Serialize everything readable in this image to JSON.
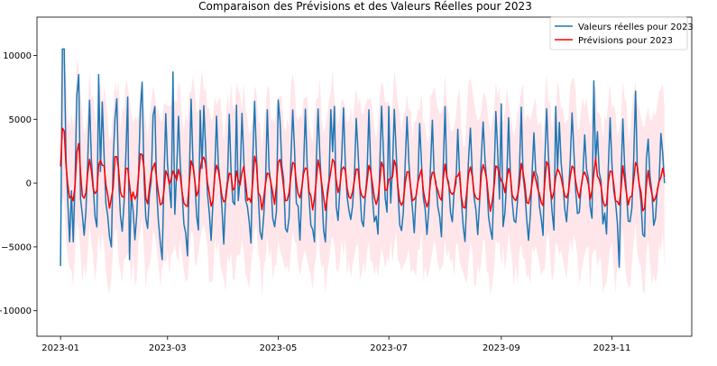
{
  "chart_data": {
    "type": "line",
    "title": "Comparaison des Prévisions et des Valeurs Réelles pour 2023",
    "xlabel": "",
    "ylabel": "",
    "x_start": "2023-01-01",
    "x_end": "2023-11-30",
    "xlim": [
      "2022-12-19",
      "2023-12-15"
    ],
    "ylim": [
      -12000,
      13000
    ],
    "x_ticks": [
      "2023-01",
      "2023-03",
      "2023-05",
      "2023-07",
      "2023-09",
      "2023-11"
    ],
    "x_tick_dates": [
      "2023-01-01",
      "2023-03-01",
      "2023-05-01",
      "2023-07-01",
      "2023-09-01",
      "2023-11-01"
    ],
    "y_ticks": [
      -10000,
      -5000,
      0,
      5000,
      10000
    ],
    "y_tick_labels": [
      "−10000",
      "−5000",
      "0",
      "5000",
      "10000"
    ],
    "grid": false,
    "legend_position": "top-right",
    "series": [
      {
        "name": "Valeurs réelles pour 2023",
        "color": "#1f77b4",
        "kind": "line",
        "weekly_pattern": [
          -6500,
          4500,
          10500,
          2000,
          -1500,
          -4600,
          -600,
          2100
        ],
        "note_values": "daily values, weekly oscillation with peaks about 5000-8700 and troughs about -3000 to -6600"
      },
      {
        "name": "Prévisions pour 2023",
        "color": "#ff0000",
        "kind": "line",
        "uncertainty_color": "#ffc0cb",
        "uncertainty_half_width": 6000
      }
    ],
    "peaks_actual": [
      [
        "2023-01-02",
        10500
      ],
      [
        "2023-01-11",
        8500
      ],
      [
        "2023-01-22",
        8500
      ],
      [
        "2023-02-01",
        6600
      ],
      [
        "2023-02-15",
        7900
      ],
      [
        "2023-02-22",
        6000
      ],
      [
        "2023-03-04",
        8700
      ],
      [
        "2023-03-19",
        5700
      ],
      [
        "2023-04-08",
        6100
      ],
      [
        "2023-05-01",
        6500
      ],
      [
        "2023-06-01",
        6000
      ],
      [
        "2023-07-01",
        6000
      ],
      [
        "2023-08-01",
        6000
      ],
      [
        "2023-09-01",
        6200
      ],
      [
        "2023-10-01",
        6000
      ],
      [
        "2023-10-22",
        8000
      ],
      [
        "2023-11-14",
        7200
      ]
    ],
    "troughs_actual": [
      [
        "2023-01-01",
        -6500
      ],
      [
        "2023-01-08",
        -4600
      ],
      [
        "2023-01-29",
        -5000
      ],
      [
        "2023-02-08",
        -6000
      ],
      [
        "2023-02-26",
        -6000
      ],
      [
        "2023-03-12",
        -5700
      ],
      [
        "2023-04-16",
        -4700
      ],
      [
        "2023-05-21",
        -4600
      ],
      [
        "2023-06-25",
        -4000
      ],
      [
        "2023-07-30",
        -4200
      ],
      [
        "2023-08-27",
        -4400
      ],
      [
        "2023-09-24",
        -4100
      ],
      [
        "2023-10-29",
        -4000
      ],
      [
        "2023-11-05",
        -6600
      ],
      [
        "2023-11-19",
        -4200
      ]
    ]
  }
}
